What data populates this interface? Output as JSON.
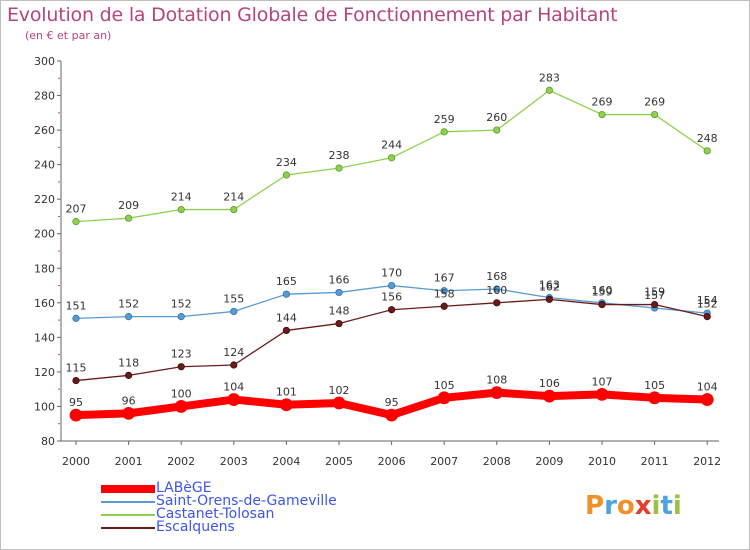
{
  "title": "Evolution de la Dotation Globale de Fonctionnement par Habitant",
  "subtitle": "(en € et par an)",
  "logo": {
    "text": "Proxiti",
    "colors": [
      "#f0902a",
      "#4fa3dd",
      "#f0902a",
      "#e23d2f",
      "#9ac142",
      "#4fa3dd",
      "#9ac142"
    ]
  },
  "chart_data": {
    "type": "line",
    "title": "Evolution de la Dotation Globale de Fonctionnement par Habitant",
    "subtitle": "(en € et par an)",
    "xlabel": "",
    "ylabel": "",
    "x": [
      "2000",
      "2001",
      "2002",
      "2003",
      "2004",
      "2005",
      "2006",
      "2007",
      "2008",
      "2009",
      "2010",
      "2011",
      "2012"
    ],
    "ylim": [
      80,
      300
    ],
    "yticks": [
      80,
      100,
      120,
      140,
      160,
      180,
      200,
      220,
      240,
      260,
      280,
      300
    ],
    "grid": false,
    "legend": "bottom-left",
    "series": [
      {
        "name": "LABèGE",
        "color": "#ff0000",
        "values": [
          95,
          96,
          100,
          104,
          101,
          102,
          95,
          105,
          108,
          106,
          107,
          105,
          104
        ]
      },
      {
        "name": "Saint-Orens-de-Gameville",
        "color": "#5b9bd5",
        "values": [
          151,
          152,
          152,
          155,
          165,
          166,
          170,
          167,
          168,
          163,
          160,
          157,
          154
        ]
      },
      {
        "name": "Castanet-Tolosan",
        "color": "#8fd14f",
        "values": [
          207,
          209,
          214,
          214,
          234,
          238,
          244,
          259,
          260,
          283,
          269,
          269,
          248
        ]
      },
      {
        "name": "Escalquens",
        "color": "#6b1a1a",
        "values": [
          115,
          118,
          123,
          124,
          144,
          148,
          156,
          158,
          160,
          162,
          159,
          159,
          152
        ]
      }
    ],
    "data_labels": {
      "LABèGE": [
        "95",
        "96",
        "100",
        "104",
        "101",
        "102",
        "95",
        "105",
        "108",
        "106",
        "107",
        "105",
        "104"
      ],
      "Saint-Orens-de-Gameville": [
        "151",
        "152",
        "152",
        "155",
        "165",
        "166",
        "170",
        "167",
        "168",
        "163",
        "160",
        "157",
        "154"
      ],
      "Castanet-Tolosan": [
        "207",
        "209",
        "214",
        "214",
        "234",
        "238",
        "244",
        "259",
        "260",
        "283",
        "269",
        "269",
        "248"
      ],
      "Escalquens": [
        "115",
        "118",
        "123",
        "124",
        "144",
        "148",
        "156",
        "158",
        "160",
        "162",
        "159",
        "159",
        "152"
      ]
    }
  }
}
